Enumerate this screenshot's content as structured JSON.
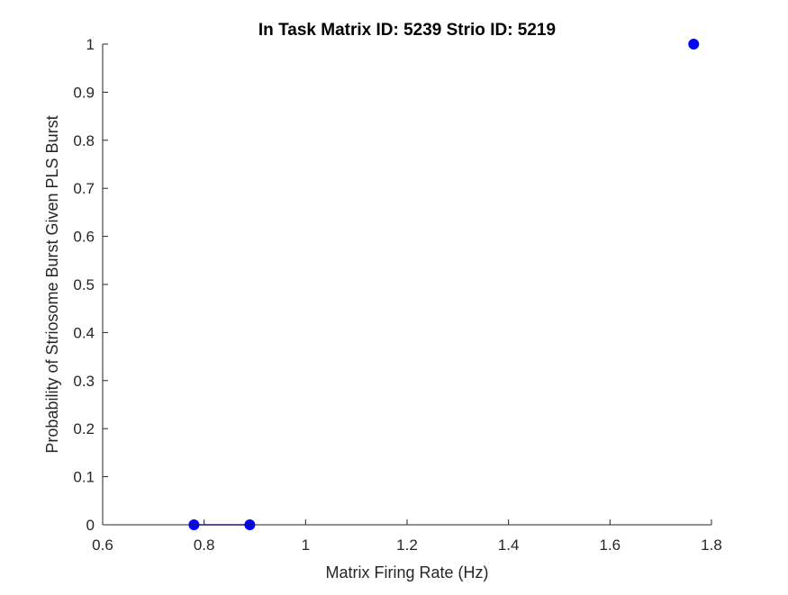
{
  "chart_data": {
    "type": "line",
    "title": "In Task Matrix ID: 5239 Strio ID: 5219",
    "xlabel": "Matrix Firing Rate (Hz)",
    "ylabel": "Probability of Striosome Burst Given PLS Burst",
    "xlim": [
      0.6,
      1.8
    ],
    "ylim": [
      0,
      1
    ],
    "xticks": [
      0.6,
      0.8,
      1,
      1.2,
      1.4,
      1.6,
      1.8
    ],
    "xtick_labels": [
      "0.6",
      "0.8",
      "1",
      "1.2",
      "1.4",
      "1.6",
      "1.8"
    ],
    "yticks": [
      0,
      0.1,
      0.2,
      0.3,
      0.4,
      0.5,
      0.6,
      0.7,
      0.8,
      0.9,
      1
    ],
    "ytick_labels": [
      "0",
      "0.1",
      "0.2",
      "0.3",
      "0.4",
      "0.5",
      "0.6",
      "0.7",
      "0.8",
      "0.9",
      "1"
    ],
    "grid": false,
    "series": [
      {
        "color": "#0000ff",
        "marker": "circle",
        "points": [
          {
            "x": 0.78,
            "y": 0
          },
          {
            "x": 0.89,
            "y": 0
          },
          {
            "x": 1.765,
            "y": 1
          }
        ]
      }
    ]
  }
}
